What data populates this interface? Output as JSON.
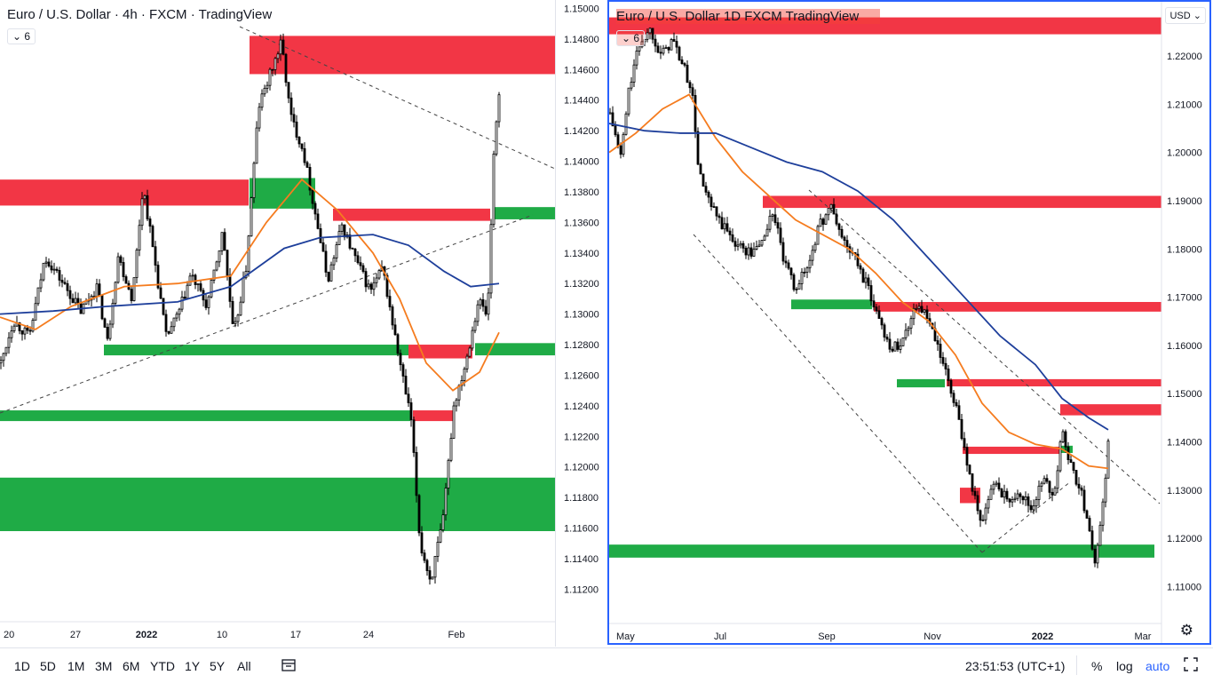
{
  "left_chart": {
    "title": "Euro / U.S. Dollar · 4h · FXCM · TradingView",
    "indicator_count": "6",
    "x_ticks": [
      "20",
      "27",
      "2022",
      "10",
      "17",
      "24",
      "Feb"
    ],
    "y_ticks": [
      "1.15000",
      "1.14800",
      "1.14600",
      "1.14400",
      "1.14200",
      "1.14000",
      "1.13800",
      "1.13600",
      "1.13400",
      "1.13200",
      "1.13000",
      "1.12800",
      "1.12600",
      "1.12400",
      "1.12200",
      "1.12000",
      "1.11800",
      "1.11600",
      "1.11400",
      "1.11200"
    ]
  },
  "right_chart": {
    "title": "Euro / U.S. Dollar  1D  FXCM  TradingView",
    "indicator_count": "6",
    "currency": "USD",
    "x_ticks": [
      "May",
      "Jul",
      "Sep",
      "Nov",
      "2022",
      "Mar"
    ],
    "y_ticks": [
      "1.22000",
      "1.21000",
      "1.20000",
      "1.19000",
      "1.18000",
      "1.17000",
      "1.16000",
      "1.15000",
      "1.14000",
      "1.13000",
      "1.12000",
      "1.11000"
    ]
  },
  "bottom_bar": {
    "timeframes": [
      "1D",
      "5D",
      "1M",
      "3M",
      "6M",
      "YTD",
      "1Y",
      "5Y",
      "All"
    ],
    "clock": "23:51:53 (UTC+1)",
    "percent": "%",
    "log": "log",
    "auto": "auto"
  },
  "chart_data": [
    {
      "type": "candlestick",
      "title": "Euro / U.S. Dollar · 4h · FXCM · TradingView",
      "timeframe": "4h",
      "ylim": [
        1.1115,
        1.1502
      ],
      "x_tick_labels": [
        "20",
        "27",
        "2022",
        "10",
        "17",
        "24",
        "Feb"
      ],
      "path": [
        [
          0,
          1.1268
        ],
        [
          14,
          1.1296
        ],
        [
          32,
          1.1285
        ],
        [
          50,
          1.1338
        ],
        [
          70,
          1.132
        ],
        [
          90,
          1.1302
        ],
        [
          108,
          1.1318
        ],
        [
          120,
          1.1282
        ],
        [
          132,
          1.1338
        ],
        [
          148,
          1.131
        ],
        [
          160,
          1.1384
        ],
        [
          172,
          1.134
        ],
        [
          186,
          1.1285
        ],
        [
          200,
          1.13
        ],
        [
          214,
          1.1326
        ],
        [
          232,
          1.1305
        ],
        [
          250,
          1.1354
        ],
        [
          262,
          1.1285
        ],
        [
          276,
          1.133
        ],
        [
          290,
          1.1435
        ],
        [
          302,
          1.1455
        ],
        [
          316,
          1.1478
        ],
        [
          326,
          1.143
        ],
        [
          340,
          1.1408
        ],
        [
          356,
          1.136
        ],
        [
          368,
          1.1322
        ],
        [
          384,
          1.1358
        ],
        [
          400,
          1.1335
        ],
        [
          416,
          1.1315
        ],
        [
          430,
          1.133
        ],
        [
          446,
          1.1278
        ],
        [
          462,
          1.123
        ],
        [
          472,
          1.115
        ],
        [
          484,
          1.1125
        ],
        [
          498,
          1.1165
        ],
        [
          510,
          1.124
        ],
        [
          524,
          1.127
        ],
        [
          538,
          1.131
        ],
        [
          548,
          1.1298
        ],
        [
          556,
          1.142
        ],
        [
          562,
          1.1446
        ]
      ],
      "zones": [
        {
          "color": "red",
          "y_top": 1.1482,
          "y_bottom": 1.1457
        },
        {
          "color": "red",
          "y_top": 1.1388,
          "y_bottom": 1.1371
        },
        {
          "color": "green",
          "y_top": 1.1389,
          "y_bottom": 1.1369
        },
        {
          "color": "red",
          "y_top": 1.1369,
          "y_bottom": 1.1361
        },
        {
          "color": "green",
          "y_top": 1.137,
          "y_bottom": 1.1362
        },
        {
          "color": "green",
          "y_top": 1.128,
          "y_bottom": 1.1273
        },
        {
          "color": "red",
          "y_top": 1.128,
          "y_bottom": 1.1271
        },
        {
          "color": "green",
          "y_top": 1.1281,
          "y_bottom": 1.1273
        },
        {
          "color": "red",
          "y_top": 1.1237,
          "y_bottom": 1.123
        },
        {
          "color": "green",
          "y_top": 1.1237,
          "y_bottom": 1.123
        },
        {
          "color": "green",
          "y_top": 1.1193,
          "y_bottom": 1.1158
        }
      ],
      "series": [
        {
          "color": "#f57c1f",
          "values": [
            [
              0,
              1.1298
            ],
            [
              40,
              1.129
            ],
            [
              80,
              1.1305
            ],
            [
              140,
              1.1318
            ],
            [
              200,
              1.132
            ],
            [
              260,
              1.1325
            ],
            [
              300,
              1.136
            ],
            [
              340,
              1.1388
            ],
            [
              380,
              1.1368
            ],
            [
              420,
              1.134
            ],
            [
              450,
              1.131
            ],
            [
              480,
              1.1268
            ],
            [
              510,
              1.125
            ],
            [
              540,
              1.1262
            ],
            [
              562,
              1.1288
            ]
          ]
        },
        {
          "color": "#1e3f9b",
          "values": [
            [
              0,
              1.13
            ],
            [
              60,
              1.1302
            ],
            [
              120,
              1.1305
            ],
            [
              200,
              1.1308
            ],
            [
              260,
              1.1318
            ],
            [
              320,
              1.1343
            ],
            [
              360,
              1.135
            ],
            [
              420,
              1.1352
            ],
            [
              460,
              1.1345
            ],
            [
              500,
              1.1328
            ],
            [
              530,
              1.1318
            ],
            [
              562,
              1.132
            ]
          ]
        }
      ]
    },
    {
      "type": "candlestick",
      "title": "Euro / U.S. Dollar  1D  FXCM  TradingView",
      "timeframe": "1D",
      "ylim": [
        1.1075,
        1.2305
      ],
      "x_tick_labels": [
        "May",
        "Jul",
        "Sep",
        "Nov",
        "2022",
        "Mar"
      ],
      "path": [
        [
          0,
          1.208
        ],
        [
          12,
          1.199
        ],
        [
          22,
          1.214
        ],
        [
          34,
          1.223
        ],
        [
          46,
          1.2255
        ],
        [
          58,
          1.22
        ],
        [
          70,
          1.2235
        ],
        [
          82,
          1.218
        ],
        [
          92,
          1.213
        ],
        [
          100,
          1.196
        ],
        [
          110,
          1.19
        ],
        [
          122,
          1.186
        ],
        [
          134,
          1.183
        ],
        [
          146,
          1.1805
        ],
        [
          160,
          1.179
        ],
        [
          172,
          1.182
        ],
        [
          184,
          1.188
        ],
        [
          196,
          1.177
        ],
        [
          208,
          1.172
        ],
        [
          222,
          1.176
        ],
        [
          234,
          1.184
        ],
        [
          248,
          1.189
        ],
        [
          262,
          1.182
        ],
        [
          276,
          1.178
        ],
        [
          290,
          1.172
        ],
        [
          304,
          1.165
        ],
        [
          318,
          1.159
        ],
        [
          332,
          1.162
        ],
        [
          344,
          1.169
        ],
        [
          356,
          1.166
        ],
        [
          368,
          1.16
        ],
        [
          378,
          1.154
        ],
        [
          388,
          1.148
        ],
        [
          398,
          1.14
        ],
        [
          408,
          1.13
        ],
        [
          420,
          1.123
        ],
        [
          432,
          1.132
        ],
        [
          446,
          1.128
        ],
        [
          460,
          1.13
        ],
        [
          474,
          1.126
        ],
        [
          488,
          1.132
        ],
        [
          500,
          1.129
        ],
        [
          510,
          1.143
        ],
        [
          518,
          1.135
        ],
        [
          530,
          1.13
        ],
        [
          540,
          1.122
        ],
        [
          546,
          1.115
        ],
        [
          552,
          1.122
        ],
        [
          558,
          1.132
        ],
        [
          562,
          1.144
        ]
      ],
      "zones": [
        {
          "color": "red",
          "y_top": 1.228,
          "y_bottom": 1.2245
        },
        {
          "color": "red",
          "y_top": 1.191,
          "y_bottom": 1.1885
        },
        {
          "color": "green",
          "y_top": 1.1695,
          "y_bottom": 1.1675
        },
        {
          "color": "red",
          "y_top": 1.169,
          "y_bottom": 1.167
        },
        {
          "color": "green",
          "y_top": 1.153,
          "y_bottom": 1.1513
        },
        {
          "color": "red",
          "y_top": 1.153,
          "y_bottom": 1.1515
        },
        {
          "color": "red",
          "y_top": 1.1478,
          "y_bottom": 1.1455
        },
        {
          "color": "red",
          "y_top": 1.139,
          "y_bottom": 1.1375
        },
        {
          "color": "green",
          "y_top": 1.1392,
          "y_bottom": 1.1377
        },
        {
          "color": "red",
          "y_top": 1.1305,
          "y_bottom": 1.1273
        },
        {
          "color": "green",
          "y_top": 1.1187,
          "y_bottom": 1.116
        }
      ],
      "series": [
        {
          "color": "#f57c1f",
          "values": [
            [
              0,
              1.2
            ],
            [
              30,
              1.204
            ],
            [
              60,
              1.209
            ],
            [
              90,
              1.212
            ],
            [
              120,
              1.203
            ],
            [
              150,
              1.196
            ],
            [
              180,
              1.191
            ],
            [
              210,
              1.186
            ],
            [
              240,
              1.183
            ],
            [
              270,
              1.18
            ],
            [
              300,
              1.175
            ],
            [
              330,
              1.169
            ],
            [
              360,
              1.165
            ],
            [
              390,
              1.158
            ],
            [
              420,
              1.148
            ],
            [
              450,
              1.142
            ],
            [
              480,
              1.1395
            ],
            [
              510,
              1.1385
            ],
            [
              540,
              1.135
            ],
            [
              562,
              1.1345
            ]
          ]
        },
        {
          "color": "#1e3f9b",
          "values": [
            [
              0,
              1.206
            ],
            [
              40,
              1.2045
            ],
            [
              80,
              1.204
            ],
            [
              120,
              1.204
            ],
            [
              160,
              1.201
            ],
            [
              200,
              1.198
            ],
            [
              240,
              1.196
            ],
            [
              280,
              1.192
            ],
            [
              320,
              1.186
            ],
            [
              360,
              1.178
            ],
            [
              400,
              1.17
            ],
            [
              440,
              1.162
            ],
            [
              480,
              1.156
            ],
            [
              510,
              1.149
            ],
            [
              540,
              1.145
            ],
            [
              562,
              1.1425
            ]
          ]
        }
      ]
    }
  ]
}
